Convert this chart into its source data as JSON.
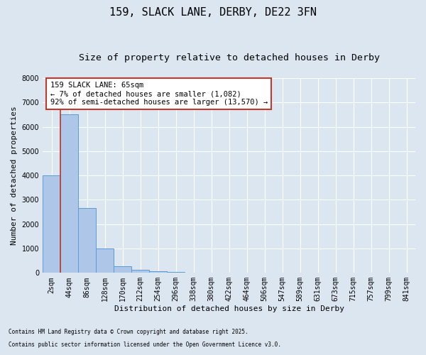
{
  "title_line1": "159, SLACK LANE, DERBY, DE22 3FN",
  "title_line2": "Size of property relative to detached houses in Derby",
  "xlabel": "Distribution of detached houses by size in Derby",
  "ylabel": "Number of detached properties",
  "categories": [
    "2sqm",
    "44sqm",
    "86sqm",
    "128sqm",
    "170sqm",
    "212sqm",
    "254sqm",
    "296sqm",
    "338sqm",
    "380sqm",
    "422sqm",
    "464sqm",
    "506sqm",
    "547sqm",
    "589sqm",
    "631sqm",
    "673sqm",
    "715sqm",
    "757sqm",
    "799sqm",
    "841sqm"
  ],
  "values": [
    4000,
    6500,
    2650,
    1000,
    270,
    120,
    80,
    50,
    0,
    0,
    0,
    0,
    0,
    0,
    0,
    0,
    0,
    0,
    0,
    0,
    0
  ],
  "bar_color": "#aec6e8",
  "bar_edge_color": "#5b9bd5",
  "background_color": "#dce6f1",
  "vline_color": "#c0392b",
  "annotation_text": "159 SLACK LANE: 65sqm\n← 7% of detached houses are smaller (1,082)\n92% of semi-detached houses are larger (13,570) →",
  "annotation_box_color": "#c0392b",
  "ylim": [
    0,
    8000
  ],
  "yticks": [
    0,
    1000,
    2000,
    3000,
    4000,
    5000,
    6000,
    7000,
    8000
  ],
  "footnote1": "Contains HM Land Registry data © Crown copyright and database right 2025.",
  "footnote2": "Contains public sector information licensed under the Open Government Licence v3.0.",
  "grid_color": "#ffffff",
  "title_fontsize": 11,
  "subtitle_fontsize": 9.5,
  "label_fontsize": 8,
  "tick_fontsize": 7,
  "annot_fontsize": 7.5,
  "footnote_fontsize": 5.5
}
